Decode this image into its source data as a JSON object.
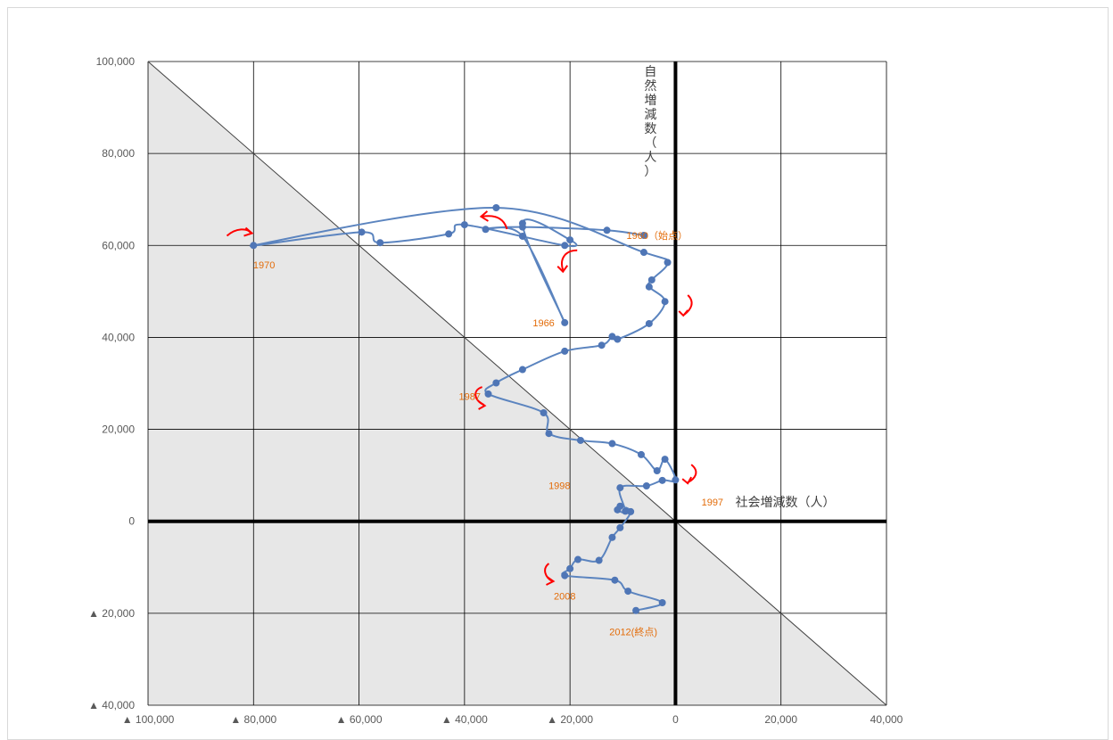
{
  "chart_data": {
    "type": "scatter",
    "xlabel": "社会増減数（人）",
    "ylabel": "自然増減数（人）",
    "xlim": [
      -100000,
      40000
    ],
    "ylim": [
      -40000,
      100000
    ],
    "grid": true,
    "x_ticks": [
      -100000,
      -80000,
      -60000,
      -40000,
      -20000,
      0,
      20000,
      40000
    ],
    "x_tick_labels": [
      "▲ 100,000",
      "▲ 80,000",
      "▲ 60,000",
      "▲ 40,000",
      "▲ 20,000",
      "0",
      "20,000",
      "40,000"
    ],
    "y_ticks": [
      100000,
      80000,
      60000,
      40000,
      20000,
      0,
      -20000,
      -40000
    ],
    "y_tick_labels": [
      "100,000",
      "80,000",
      "60,000",
      "40,000",
      "20,000",
      "0",
      "▲ 20,000",
      "▲ 40,000"
    ],
    "reference_line": {
      "from": [
        -100000,
        100000
      ],
      "to": [
        40000,
        -40000
      ],
      "shaded_side": "below-left",
      "shade_color": "#e7e7e7"
    },
    "line_color": "#5b84bf",
    "marker_color": "#4f76b6",
    "arrow_color": "#ff0000",
    "series": [
      {
        "points": [
          [
            -6000,
            62200
          ],
          [
            -13000,
            63300
          ],
          [
            -29000,
            64000
          ],
          [
            -36000,
            63500
          ],
          [
            -29000,
            62000
          ],
          [
            -21000,
            43200
          ],
          [
            -29000,
            64800
          ],
          [
            -20000,
            61200
          ],
          [
            -21000,
            60000
          ],
          [
            -40000,
            64500
          ],
          [
            -43000,
            62500
          ],
          [
            -56000,
            60600
          ],
          [
            -59500,
            62900
          ],
          [
            -80000,
            60000
          ],
          [
            -34000,
            68200
          ],
          [
            -6000,
            58500
          ],
          [
            -1500,
            56300
          ],
          [
            -4500,
            52500
          ],
          [
            -5000,
            51000
          ],
          [
            -2000,
            47800
          ],
          [
            -5000,
            43000
          ],
          [
            -11000,
            39600
          ],
          [
            -12000,
            40200
          ],
          [
            -14000,
            38300
          ],
          [
            -21000,
            37000
          ],
          [
            -29000,
            33000
          ],
          [
            -34000,
            30100
          ],
          [
            -35500,
            27700
          ],
          [
            -25000,
            23600
          ],
          [
            -24000,
            19100
          ],
          [
            -18000,
            17600
          ],
          [
            -12000,
            16900
          ],
          [
            -6500,
            14500
          ],
          [
            -3500,
            11000
          ],
          [
            -2000,
            13500
          ],
          [
            0,
            9000
          ],
          [
            -2500,
            8900
          ],
          [
            -5500,
            7700
          ],
          [
            -10500,
            7300
          ],
          [
            -9500,
            2200
          ],
          [
            -11000,
            2500
          ],
          [
            -10500,
            3300
          ],
          [
            -8500,
            2100
          ],
          [
            -10500,
            -1400
          ],
          [
            -12000,
            -3500
          ],
          [
            -14500,
            -8500
          ],
          [
            -18500,
            -8300
          ],
          [
            -20000,
            -10300
          ],
          [
            -21000,
            -11800
          ],
          [
            -11500,
            -12800
          ],
          [
            -9000,
            -15200
          ],
          [
            -2500,
            -17700
          ],
          [
            -7500,
            -19400
          ]
        ]
      }
    ],
    "annotations": [
      {
        "text": "1960（始点）",
        "x": -3500,
        "y": 62200
      },
      {
        "text": "1970",
        "x": -78000,
        "y": 55800
      },
      {
        "text": "1966",
        "x": -25000,
        "y": 43200
      },
      {
        "text": "1987",
        "x": -39000,
        "y": 27200
      },
      {
        "text": "1998",
        "x": -22000,
        "y": 7800
      },
      {
        "text": "1997",
        "x": 7000,
        "y": 4200
      },
      {
        "text": "2008",
        "x": -21000,
        "y": -16200
      },
      {
        "text": "2012(終点)",
        "x": -8000,
        "y": -24000
      }
    ]
  }
}
